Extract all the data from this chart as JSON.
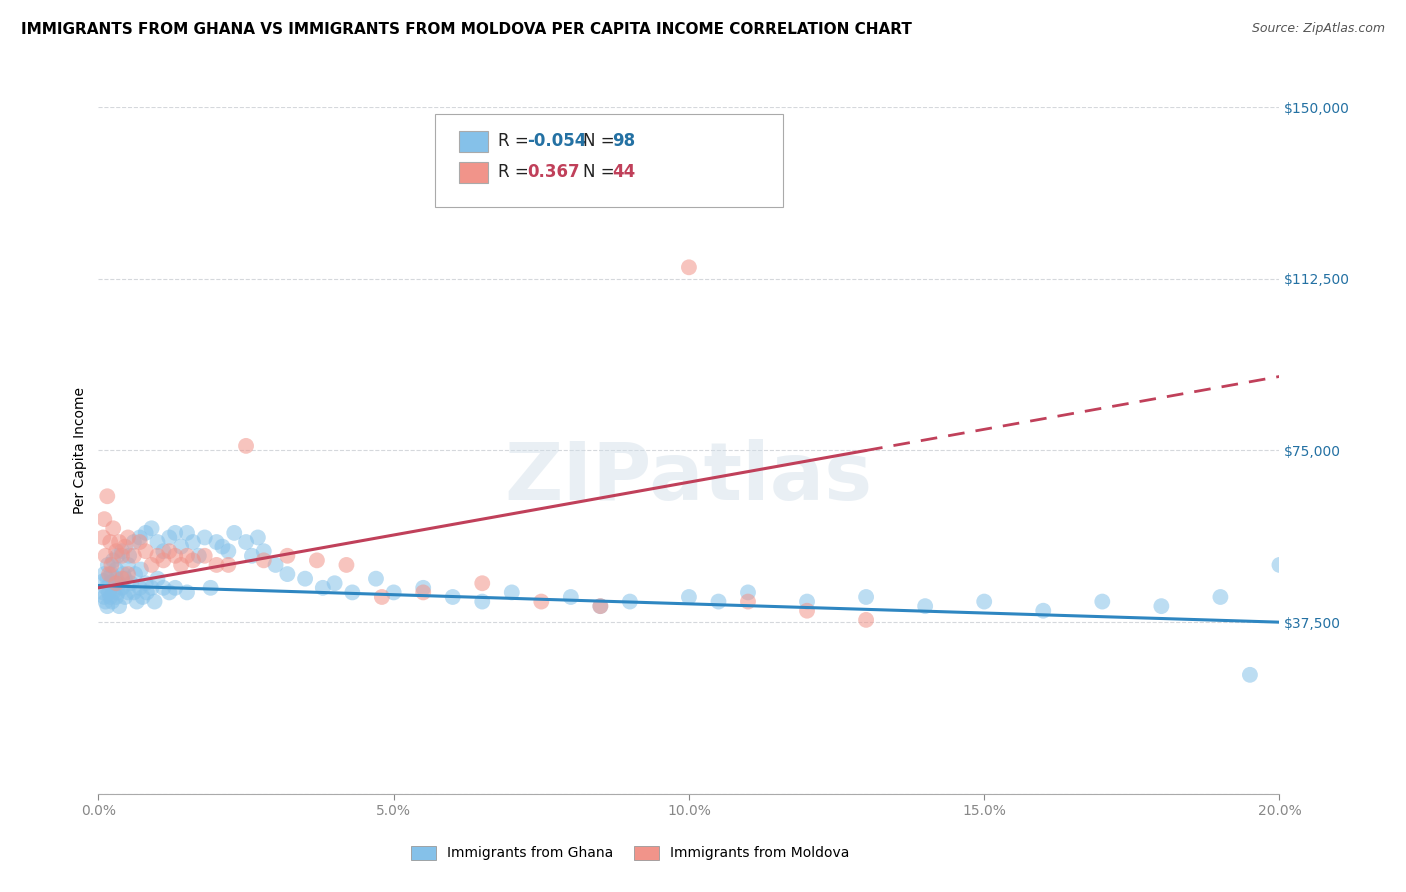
{
  "title": "IMMIGRANTS FROM GHANA VS IMMIGRANTS FROM MOLDOVA PER CAPITA INCOME CORRELATION CHART",
  "source": "Source: ZipAtlas.com",
  "ylabel": "Per Capita Income",
  "yticks": [
    0,
    37500,
    75000,
    112500,
    150000
  ],
  "ytick_labels": [
    "",
    "$37,500",
    "$75,000",
    "$112,500",
    "$150,000"
  ],
  "xlim": [
    0.0,
    0.2
  ],
  "ylim": [
    0,
    150000
  ],
  "ghana_R": -0.054,
  "ghana_N": 98,
  "moldova_R": 0.367,
  "moldova_N": 44,
  "ghana_color": "#85c1e9",
  "moldova_color": "#f1948a",
  "ghana_line_color": "#2e86c1",
  "moldova_line_color": "#c0405a",
  "background_color": "#ffffff",
  "grid_color": "#d5d8dc",
  "ghana_scatter_x": [
    0.0008,
    0.0009,
    0.001,
    0.001,
    0.0012,
    0.0013,
    0.0015,
    0.0015,
    0.0016,
    0.0018,
    0.002,
    0.002,
    0.0022,
    0.0023,
    0.0025,
    0.0025,
    0.0027,
    0.003,
    0.003,
    0.003,
    0.0032,
    0.0033,
    0.0035,
    0.0035,
    0.004,
    0.004,
    0.0042,
    0.0045,
    0.0045,
    0.005,
    0.005,
    0.0052,
    0.0055,
    0.006,
    0.006,
    0.0062,
    0.0065,
    0.007,
    0.007,
    0.0072,
    0.0075,
    0.008,
    0.008,
    0.0082,
    0.009,
    0.009,
    0.0095,
    0.01,
    0.01,
    0.011,
    0.011,
    0.012,
    0.012,
    0.013,
    0.013,
    0.014,
    0.015,
    0.015,
    0.016,
    0.017,
    0.018,
    0.019,
    0.02,
    0.021,
    0.022,
    0.023,
    0.025,
    0.026,
    0.027,
    0.028,
    0.03,
    0.032,
    0.035,
    0.038,
    0.04,
    0.043,
    0.047,
    0.05,
    0.055,
    0.06,
    0.065,
    0.07,
    0.08,
    0.085,
    0.09,
    0.1,
    0.105,
    0.11,
    0.12,
    0.13,
    0.14,
    0.15,
    0.16,
    0.17,
    0.18,
    0.19,
    0.195,
    0.2
  ],
  "ghana_scatter_y": [
    44000,
    46500,
    43000,
    48000,
    42000,
    45000,
    47000,
    41000,
    50000,
    44000,
    46000,
    43000,
    48000,
    42000,
    51000,
    44000,
    46000,
    49000,
    43000,
    47000,
    52000,
    44000,
    46000,
    41000,
    53000,
    45000,
    48000,
    43000,
    47000,
    50000,
    44000,
    52000,
    46000,
    55000,
    44000,
    48000,
    42000,
    56000,
    45000,
    49000,
    43000,
    57000,
    46000,
    44000,
    58000,
    45000,
    42000,
    55000,
    47000,
    53000,
    45000,
    56000,
    44000,
    57000,
    45000,
    54000,
    57000,
    44000,
    55000,
    52000,
    56000,
    45000,
    55000,
    54000,
    53000,
    57000,
    55000,
    52000,
    56000,
    53000,
    50000,
    48000,
    47000,
    45000,
    46000,
    44000,
    47000,
    44000,
    45000,
    43000,
    42000,
    44000,
    43000,
    41000,
    42000,
    43000,
    42000,
    44000,
    42000,
    43000,
    41000,
    42000,
    40000,
    42000,
    41000,
    43000,
    26000,
    50000
  ],
  "moldova_scatter_x": [
    0.0008,
    0.001,
    0.0012,
    0.0015,
    0.0018,
    0.002,
    0.0022,
    0.0025,
    0.003,
    0.003,
    0.0035,
    0.004,
    0.004,
    0.0045,
    0.005,
    0.005,
    0.006,
    0.007,
    0.008,
    0.009,
    0.01,
    0.011,
    0.012,
    0.013,
    0.014,
    0.015,
    0.016,
    0.018,
    0.02,
    0.022,
    0.025,
    0.028,
    0.032,
    0.037,
    0.042,
    0.048,
    0.055,
    0.065,
    0.075,
    0.085,
    0.1,
    0.11,
    0.12,
    0.13
  ],
  "moldova_scatter_y": [
    56000,
    60000,
    52000,
    65000,
    48000,
    55000,
    50000,
    58000,
    53000,
    46000,
    55000,
    52000,
    47000,
    54000,
    56000,
    48000,
    52000,
    55000,
    53000,
    50000,
    52000,
    51000,
    53000,
    52000,
    50000,
    52000,
    51000,
    52000,
    50000,
    50000,
    76000,
    51000,
    52000,
    51000,
    50000,
    43000,
    44000,
    46000,
    42000,
    41000,
    115000,
    42000,
    40000,
    38000
  ],
  "title_fontsize": 11,
  "source_fontsize": 9,
  "axis_label_fontsize": 10,
  "tick_fontsize": 10
}
